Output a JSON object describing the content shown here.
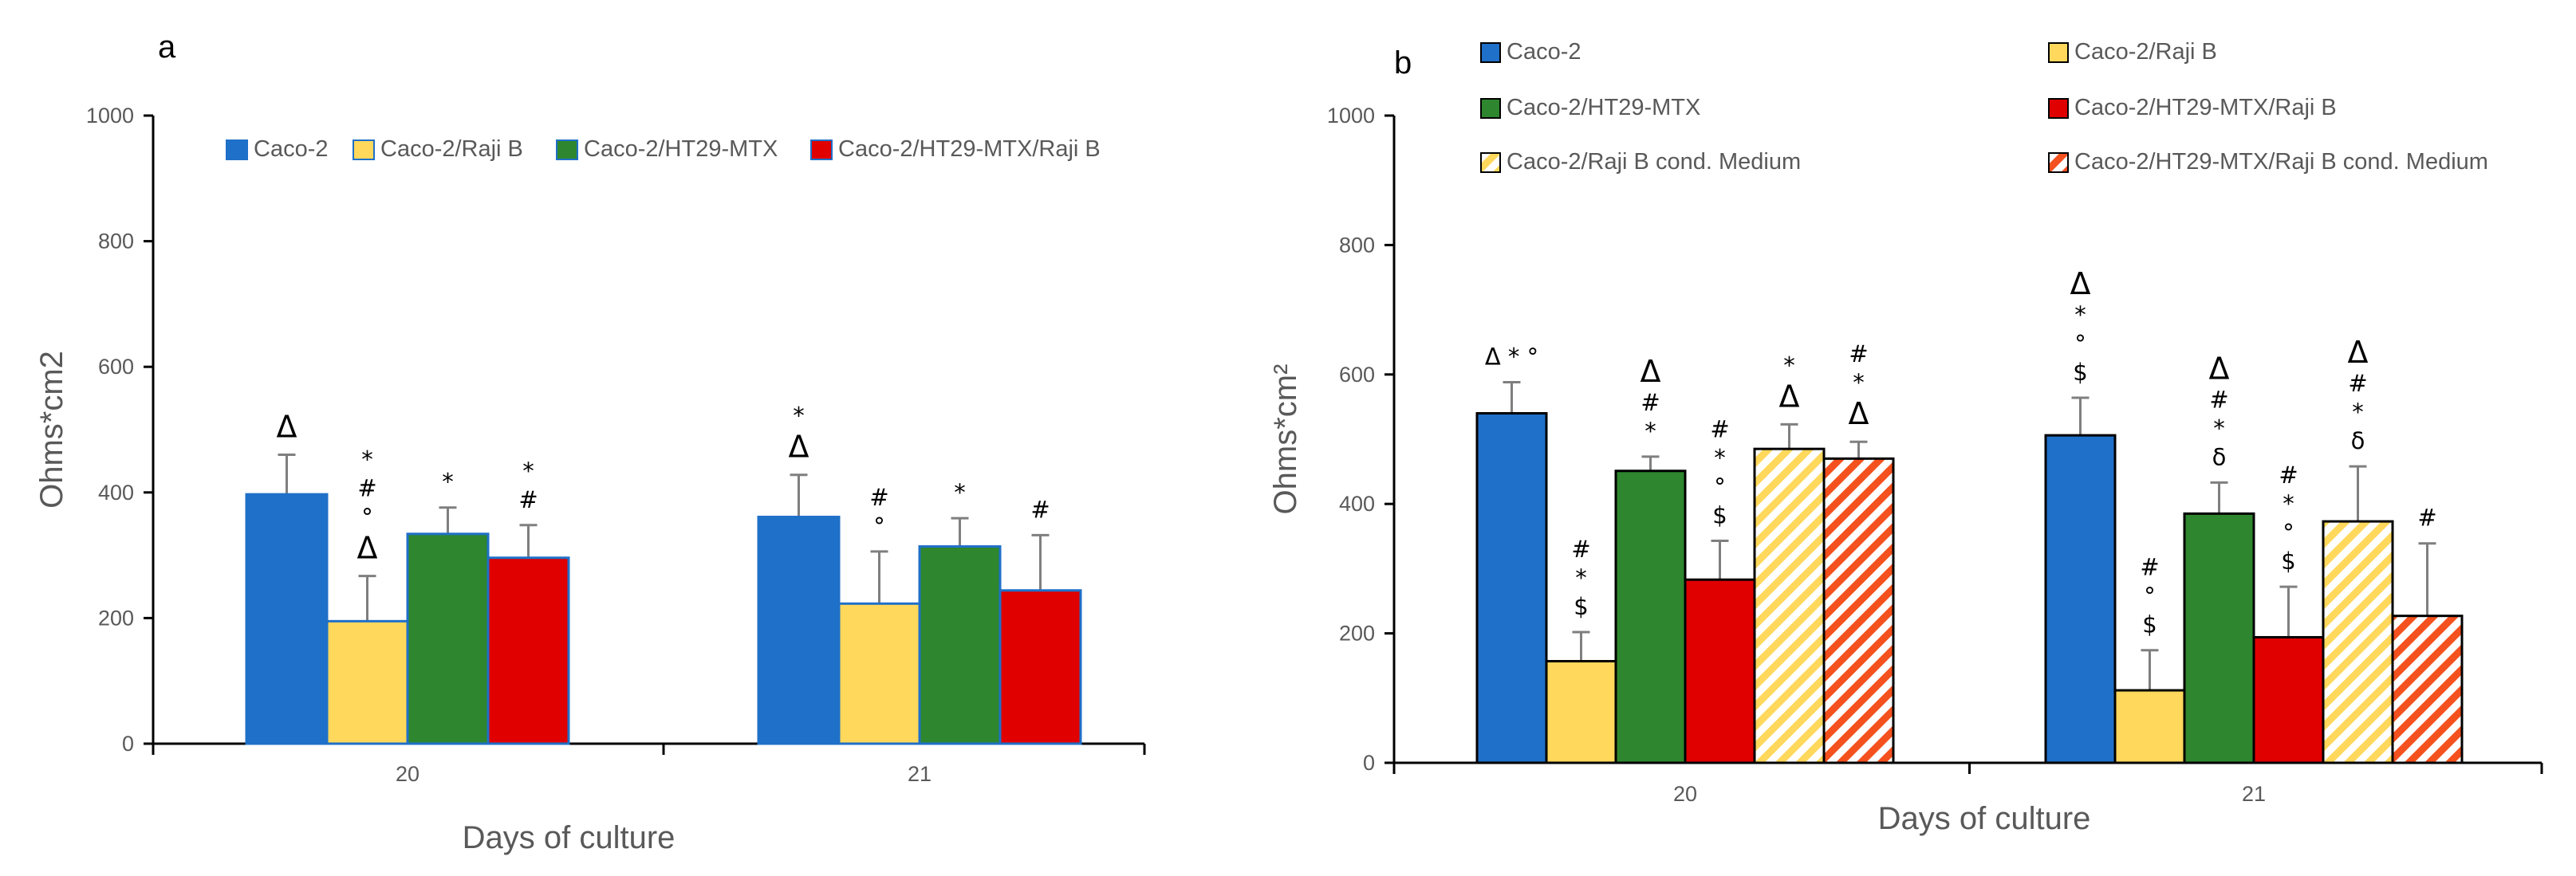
{
  "chart_data": [
    {
      "type": "bar",
      "panel_label": "a",
      "categories": [
        "20",
        "21"
      ],
      "xlabel": "Days of culture",
      "ylabel": "Ohms*cm2",
      "ylim": [
        0,
        1000
      ],
      "yticks": [
        0,
        200,
        400,
        600,
        800,
        1000
      ],
      "legend_position": "top",
      "series": [
        {
          "name": "Caco-2",
          "color": "#1F70C8",
          "pattern": "solid",
          "values": [
            397,
            361
          ],
          "errors": [
            63,
            67
          ],
          "annotations": [
            [
              "Δ"
            ],
            [
              "*",
              "Δ"
            ]
          ]
        },
        {
          "name": "Caco-2/Raji B",
          "color": "#FFD85C",
          "pattern": "solid",
          "values": [
            195,
            223
          ],
          "errors": [
            72,
            83
          ],
          "annotations": [
            [
              "*",
              "#",
              "°",
              "Δ"
            ],
            [
              "#",
              "°"
            ]
          ]
        },
        {
          "name": "Caco-2/HT29-MTX",
          "color": "#2E862E",
          "pattern": "solid",
          "values": [
            334,
            314
          ],
          "errors": [
            42,
            45
          ],
          "annotations": [
            [
              "*"
            ],
            [
              "*"
            ]
          ]
        },
        {
          "name": "Caco-2/HT29-MTX/Raji B",
          "color": "#E00000",
          "pattern": "solid",
          "values": [
            296,
            244
          ],
          "errors": [
            52,
            88
          ],
          "annotations": [
            [
              "*",
              "#"
            ],
            [
              "#"
            ]
          ]
        }
      ]
    },
    {
      "type": "bar",
      "panel_label": "b",
      "categories": [
        "20",
        "21"
      ],
      "xlabel": "Days of culture",
      "ylabel": "Ohms*cm²",
      "ylim": [
        0,
        1000
      ],
      "yticks": [
        0,
        200,
        400,
        600,
        800,
        1000
      ],
      "legend_position": "top",
      "series": [
        {
          "name": "Caco-2",
          "color": "#1F70C8",
          "pattern": "solid",
          "values": [
            540,
            506
          ],
          "errors": [
            48,
            58
          ],
          "annotations": [
            [
              "Δ * °"
            ],
            [
              "Δ",
              "*",
              "°",
              "$"
            ]
          ]
        },
        {
          "name": "Caco-2/Raji B",
          "color": "#FFD85C",
          "pattern": "solid",
          "values": [
            157,
            112
          ],
          "errors": [
            45,
            62
          ],
          "annotations": [
            [
              "#",
              "*",
              "$"
            ],
            [
              "#",
              "°",
              "$"
            ]
          ]
        },
        {
          "name": "Caco-2/HT29-MTX",
          "color": "#2E862E",
          "pattern": "solid",
          "values": [
            451,
            385
          ],
          "errors": [
            22,
            48
          ],
          "annotations": [
            [
              "Δ",
              "#",
              "*"
            ],
            [
              "Δ",
              "#",
              "*",
              "δ"
            ]
          ]
        },
        {
          "name": "Caco-2/HT29-MTX/Raji B",
          "color": "#E00000",
          "pattern": "solid",
          "values": [
            283,
            194
          ],
          "errors": [
            60,
            78
          ],
          "annotations": [
            [
              "#",
              "*",
              "°",
              "$"
            ],
            [
              "#",
              "*",
              "°",
              "$"
            ]
          ]
        },
        {
          "name": "Caco-2/Raji B cond. Medium",
          "color": "#FFD85C",
          "pattern": "hatched",
          "values": [
            485,
            373
          ],
          "errors": [
            38,
            85
          ],
          "annotations": [
            [
              "*",
              "Δ"
            ],
            [
              "Δ",
              "#",
              "*",
              "δ"
            ]
          ]
        },
        {
          "name": "Caco-2/HT29-MTX/Raji B cond. Medium",
          "color": "#F4511E",
          "pattern": "hatched",
          "values": [
            470,
            227
          ],
          "errors": [
            26,
            112
          ],
          "annotations": [
            [
              "#",
              "*",
              "Δ"
            ],
            [
              "#"
            ]
          ]
        }
      ]
    }
  ]
}
